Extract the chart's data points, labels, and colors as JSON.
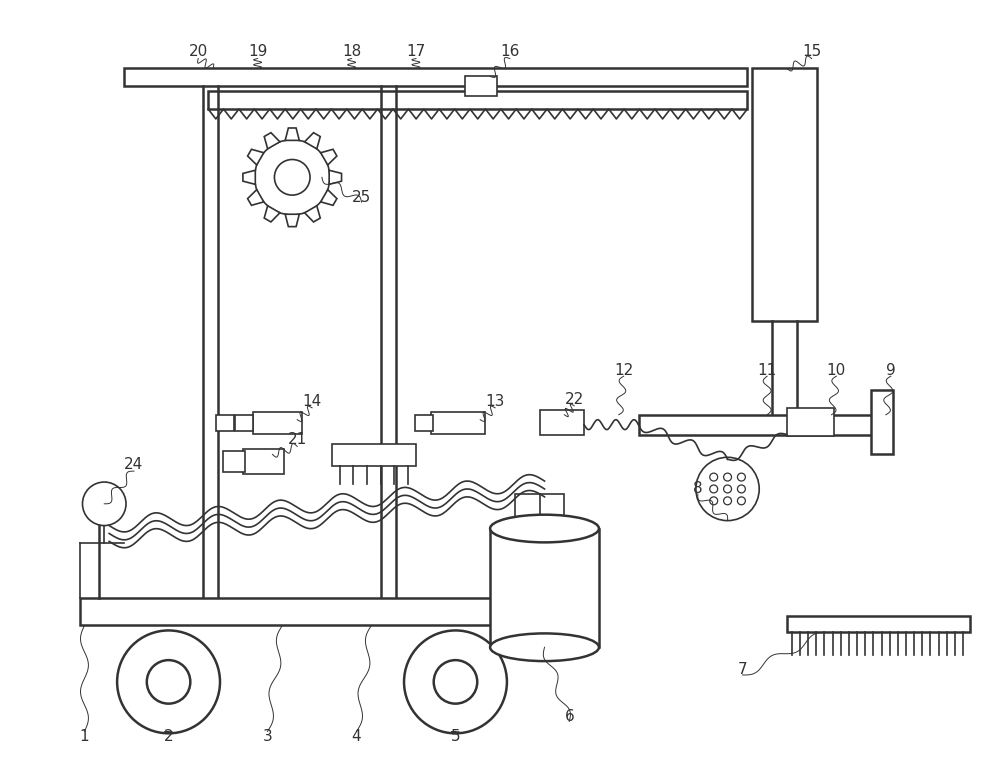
{
  "bg_color": "#ffffff",
  "lc": "#333333",
  "label_color": "#333333",
  "fig_width": 10.0,
  "fig_height": 7.84
}
